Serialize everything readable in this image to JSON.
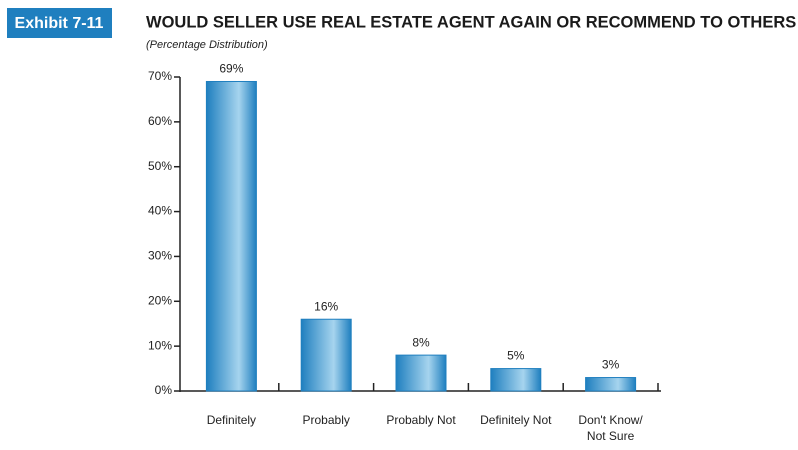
{
  "exhibit": "Exhibit 7-11",
  "chart_data": {
    "type": "bar",
    "title": "WOULD SELLER USE REAL ESTATE AGENT AGAIN OR RECOMMEND TO OTHERS",
    "subtitle": "(Percentage Distribution)",
    "categories": [
      "Definitely",
      "Probably",
      "Probably Not",
      "Definitely Not",
      "Don't Know/\nNot Sure"
    ],
    "values": [
      69,
      16,
      8,
      5,
      3
    ],
    "value_labels": [
      "69%",
      "16%",
      "8%",
      "5%",
      "3%"
    ],
    "color": "#1f7fbf",
    "ylim": [
      0,
      70
    ],
    "yticks": [
      {
        "value": 0,
        "label": "0%"
      },
      {
        "value": 10,
        "label": "10%"
      },
      {
        "value": 20,
        "label": "20%"
      },
      {
        "value": 30,
        "label": "30%"
      },
      {
        "value": 40,
        "label": "40%"
      },
      {
        "value": 50,
        "label": "50%"
      },
      {
        "value": 60,
        "label": "60%"
      },
      {
        "value": 70,
        "label": "70%"
      }
    ],
    "grid": false
  }
}
